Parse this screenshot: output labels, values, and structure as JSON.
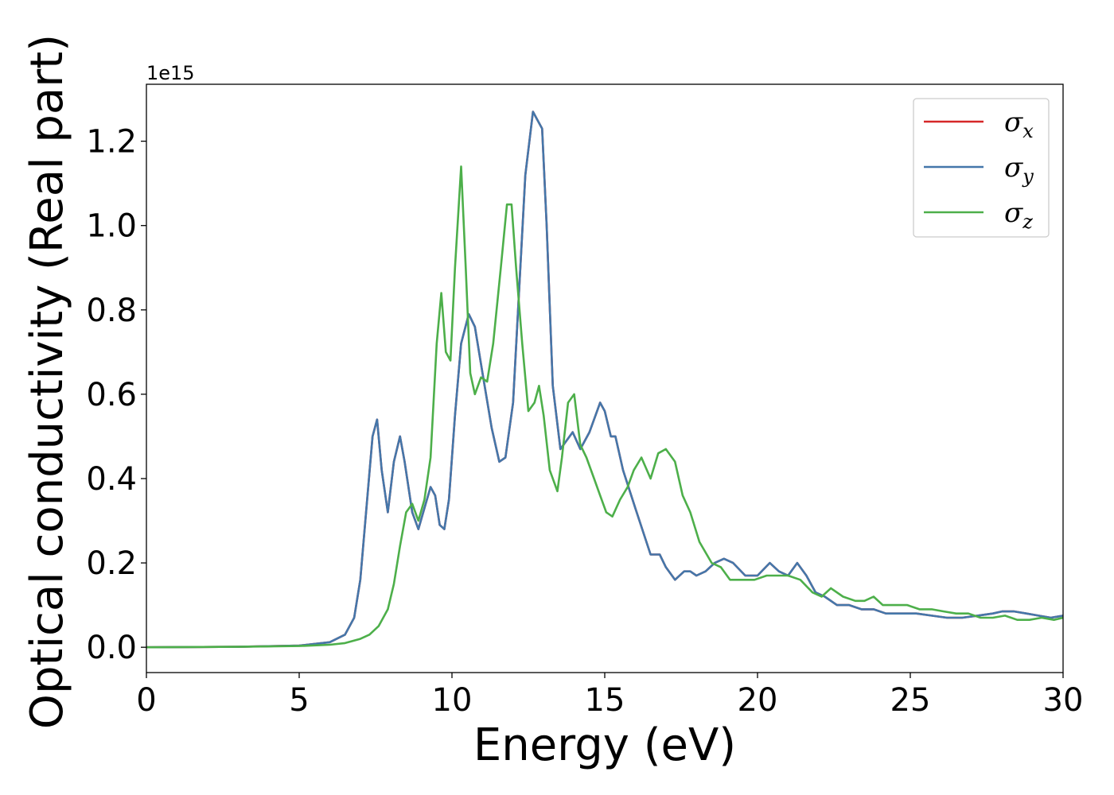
{
  "chart_data": {
    "type": "line",
    "xlabel": "Energy (eV)",
    "ylabel": "Optical conductivity (Real part)",
    "y_offset_text": "1e15",
    "xlim": [
      0,
      30
    ],
    "ylim": [
      -0.06,
      1.335
    ],
    "xticks": [
      0,
      5,
      10,
      15,
      20,
      25,
      30
    ],
    "xtick_labels": [
      "0",
      "5",
      "10",
      "15",
      "20",
      "25",
      "30"
    ],
    "yticks": [
      0.0,
      0.2,
      0.4,
      0.6,
      0.8,
      1.0,
      1.2
    ],
    "ytick_labels": [
      "0.0",
      "0.2",
      "0.4",
      "0.6",
      "0.8",
      "1.0",
      "1.2"
    ],
    "grid": false,
    "legend_position": "upper right",
    "series": [
      {
        "name": "σx",
        "name_main": "σ",
        "name_sub": "x",
        "color": "#d62728",
        "x": [
          0,
          3,
          5,
          6,
          6.5,
          6.8,
          7.0,
          7.2,
          7.4,
          7.55,
          7.7,
          7.9,
          8.1,
          8.3,
          8.45,
          8.7,
          8.9,
          9.1,
          9.3,
          9.45,
          9.6,
          9.75,
          9.9,
          10.1,
          10.3,
          10.55,
          10.75,
          11.0,
          11.3,
          11.55,
          11.75,
          12.0,
          12.2,
          12.4,
          12.65,
          12.8,
          12.95,
          13.1,
          13.3,
          13.55,
          13.75,
          13.95,
          14.2,
          14.5,
          14.85,
          15.0,
          15.2,
          15.35,
          15.6,
          16.0,
          16.5,
          16.8,
          17.0,
          17.3,
          17.6,
          17.8,
          18.0,
          18.3,
          18.6,
          18.9,
          19.2,
          19.6,
          20.0,
          20.4,
          20.7,
          21.0,
          21.3,
          21.6,
          21.9,
          22.2,
          22.6,
          23.0,
          23.4,
          23.8,
          24.2,
          24.7,
          25.2,
          25.7,
          26.2,
          26.7,
          27.2,
          27.7,
          28.0,
          28.4,
          28.8,
          29.2,
          29.6,
          30.0
        ],
        "y": [
          0,
          0.001,
          0.004,
          0.012,
          0.03,
          0.07,
          0.16,
          0.33,
          0.5,
          0.54,
          0.42,
          0.32,
          0.44,
          0.5,
          0.44,
          0.32,
          0.28,
          0.33,
          0.38,
          0.36,
          0.29,
          0.28,
          0.35,
          0.55,
          0.72,
          0.79,
          0.76,
          0.65,
          0.52,
          0.44,
          0.45,
          0.58,
          0.85,
          1.12,
          1.27,
          1.25,
          1.23,
          1.0,
          0.62,
          0.47,
          0.49,
          0.51,
          0.47,
          0.51,
          0.58,
          0.56,
          0.5,
          0.5,
          0.42,
          0.33,
          0.22,
          0.22,
          0.19,
          0.16,
          0.18,
          0.18,
          0.17,
          0.18,
          0.2,
          0.21,
          0.2,
          0.17,
          0.17,
          0.2,
          0.18,
          0.17,
          0.2,
          0.17,
          0.13,
          0.12,
          0.1,
          0.1,
          0.09,
          0.09,
          0.08,
          0.08,
          0.08,
          0.075,
          0.07,
          0.07,
          0.075,
          0.08,
          0.085,
          0.085,
          0.08,
          0.075,
          0.07,
          0.075
        ]
      },
      {
        "name": "σy",
        "name_main": "σ",
        "name_sub": "y",
        "color": "#4477aa",
        "x": [
          0,
          3,
          5,
          6,
          6.5,
          6.8,
          7.0,
          7.2,
          7.4,
          7.55,
          7.7,
          7.9,
          8.1,
          8.3,
          8.45,
          8.7,
          8.9,
          9.1,
          9.3,
          9.45,
          9.6,
          9.75,
          9.9,
          10.1,
          10.3,
          10.55,
          10.75,
          11.0,
          11.3,
          11.55,
          11.75,
          12.0,
          12.2,
          12.4,
          12.65,
          12.8,
          12.95,
          13.1,
          13.3,
          13.55,
          13.75,
          13.95,
          14.2,
          14.5,
          14.85,
          15.0,
          15.2,
          15.35,
          15.6,
          16.0,
          16.5,
          16.8,
          17.0,
          17.3,
          17.6,
          17.8,
          18.0,
          18.3,
          18.6,
          18.9,
          19.2,
          19.6,
          20.0,
          20.4,
          20.7,
          21.0,
          21.3,
          21.6,
          21.9,
          22.2,
          22.6,
          23.0,
          23.4,
          23.8,
          24.2,
          24.7,
          25.2,
          25.7,
          26.2,
          26.7,
          27.2,
          27.7,
          28.0,
          28.4,
          28.8,
          29.2,
          29.6,
          30.0
        ],
        "y": [
          0,
          0.001,
          0.004,
          0.012,
          0.03,
          0.07,
          0.16,
          0.33,
          0.5,
          0.54,
          0.42,
          0.32,
          0.44,
          0.5,
          0.44,
          0.32,
          0.28,
          0.33,
          0.38,
          0.36,
          0.29,
          0.28,
          0.35,
          0.55,
          0.72,
          0.79,
          0.76,
          0.65,
          0.52,
          0.44,
          0.45,
          0.58,
          0.85,
          1.12,
          1.27,
          1.25,
          1.23,
          1.0,
          0.62,
          0.47,
          0.49,
          0.51,
          0.47,
          0.51,
          0.58,
          0.56,
          0.5,
          0.5,
          0.42,
          0.33,
          0.22,
          0.22,
          0.19,
          0.16,
          0.18,
          0.18,
          0.17,
          0.18,
          0.2,
          0.21,
          0.2,
          0.17,
          0.17,
          0.2,
          0.18,
          0.17,
          0.2,
          0.17,
          0.13,
          0.12,
          0.1,
          0.1,
          0.09,
          0.09,
          0.08,
          0.08,
          0.08,
          0.075,
          0.07,
          0.07,
          0.075,
          0.08,
          0.085,
          0.085,
          0.08,
          0.075,
          0.07,
          0.075
        ]
      },
      {
        "name": "σz",
        "name_main": "σ",
        "name_sub": "z",
        "color": "#4daf4a",
        "x": [
          0,
          3,
          5,
          6,
          6.5,
          7.0,
          7.3,
          7.6,
          7.9,
          8.1,
          8.3,
          8.5,
          8.7,
          8.9,
          9.1,
          9.3,
          9.5,
          9.65,
          9.8,
          9.95,
          10.1,
          10.3,
          10.45,
          10.6,
          10.75,
          10.95,
          11.15,
          11.35,
          11.6,
          11.8,
          11.95,
          12.1,
          12.3,
          12.5,
          12.7,
          12.85,
          13.0,
          13.2,
          13.45,
          13.6,
          13.8,
          14.0,
          14.2,
          14.4,
          14.65,
          14.85,
          15.05,
          15.25,
          15.5,
          15.75,
          15.95,
          16.2,
          16.5,
          16.75,
          17.0,
          17.3,
          17.55,
          17.8,
          18.1,
          18.5,
          18.8,
          19.1,
          19.5,
          19.9,
          20.3,
          20.7,
          21.0,
          21.4,
          21.8,
          22.1,
          22.4,
          22.8,
          23.2,
          23.5,
          23.8,
          24.1,
          24.5,
          24.9,
          25.3,
          25.7,
          26.1,
          26.5,
          26.9,
          27.3,
          27.7,
          28.1,
          28.5,
          28.9,
          29.3,
          29.7,
          30.0
        ],
        "y": [
          0,
          0.001,
          0.003,
          0.006,
          0.01,
          0.02,
          0.03,
          0.05,
          0.09,
          0.15,
          0.24,
          0.32,
          0.34,
          0.3,
          0.35,
          0.45,
          0.72,
          0.84,
          0.7,
          0.68,
          0.9,
          1.14,
          0.9,
          0.65,
          0.6,
          0.64,
          0.63,
          0.72,
          0.9,
          1.05,
          1.05,
          0.9,
          0.72,
          0.56,
          0.58,
          0.62,
          0.55,
          0.42,
          0.37,
          0.45,
          0.58,
          0.6,
          0.48,
          0.45,
          0.4,
          0.36,
          0.32,
          0.31,
          0.35,
          0.38,
          0.42,
          0.45,
          0.4,
          0.46,
          0.47,
          0.44,
          0.36,
          0.32,
          0.25,
          0.2,
          0.19,
          0.16,
          0.16,
          0.16,
          0.17,
          0.17,
          0.17,
          0.16,
          0.13,
          0.12,
          0.14,
          0.12,
          0.11,
          0.11,
          0.12,
          0.1,
          0.1,
          0.1,
          0.09,
          0.09,
          0.085,
          0.08,
          0.08,
          0.07,
          0.07,
          0.075,
          0.065,
          0.065,
          0.07,
          0.065,
          0.07
        ]
      }
    ]
  }
}
